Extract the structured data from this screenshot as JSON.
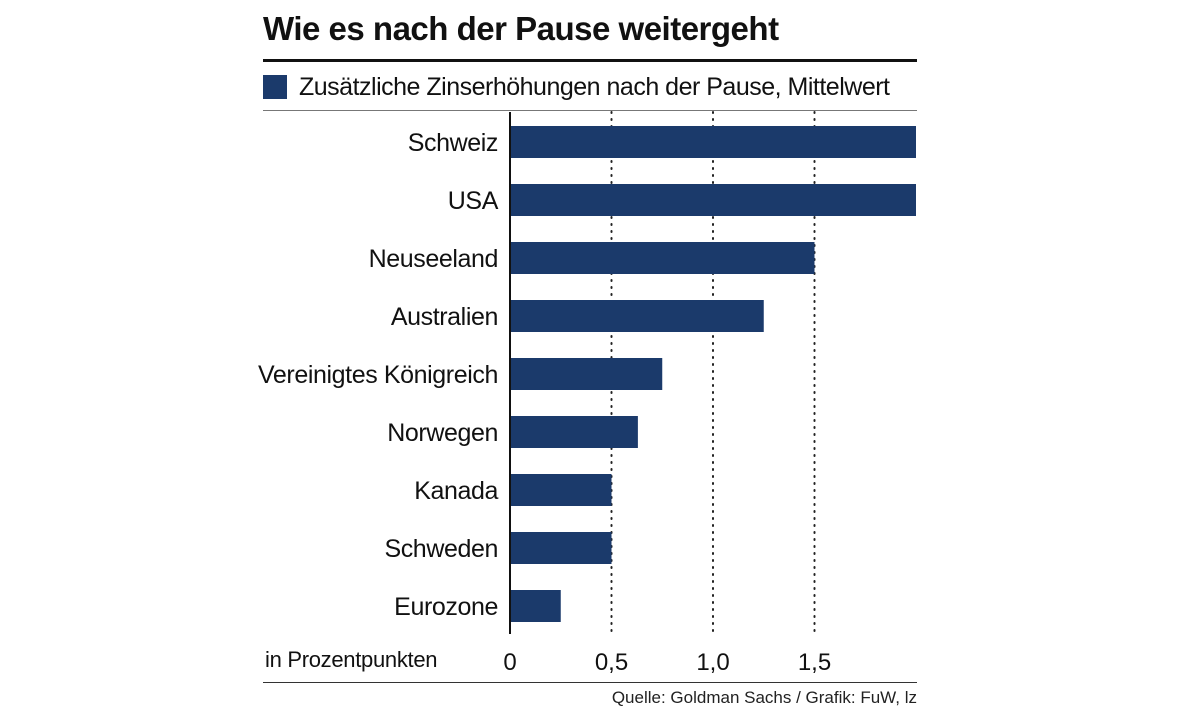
{
  "title": "Wie es nach der Pause weitergeht",
  "legend_label": "Zusätzliche Zinserhöhungen nach der Pause, Mittelwert",
  "unit_label": "in Prozentpunkten",
  "source": "Quelle: Goldman Sachs / Grafik: FuW, lz",
  "colors": {
    "bar": "#1b3a6b",
    "text": "#111111"
  },
  "chart_data": {
    "type": "bar",
    "orientation": "horizontal",
    "categories": [
      "Schweiz",
      "USA",
      "Neuseeland",
      "Australien",
      "Vereinigtes Königreich",
      "Norwegen",
      "Kanada",
      "Schweden",
      "Eurozone"
    ],
    "values": [
      2.0,
      2.0,
      1.5,
      1.25,
      0.75,
      0.63,
      0.5,
      0.5,
      0.25
    ],
    "x_ticks": [
      "0",
      "0,5",
      "1,0",
      "1,5"
    ],
    "tick_values": [
      0,
      0.5,
      1.0,
      1.5
    ],
    "xlim": [
      0,
      2.0
    ],
    "grid": "vertical dotted"
  }
}
